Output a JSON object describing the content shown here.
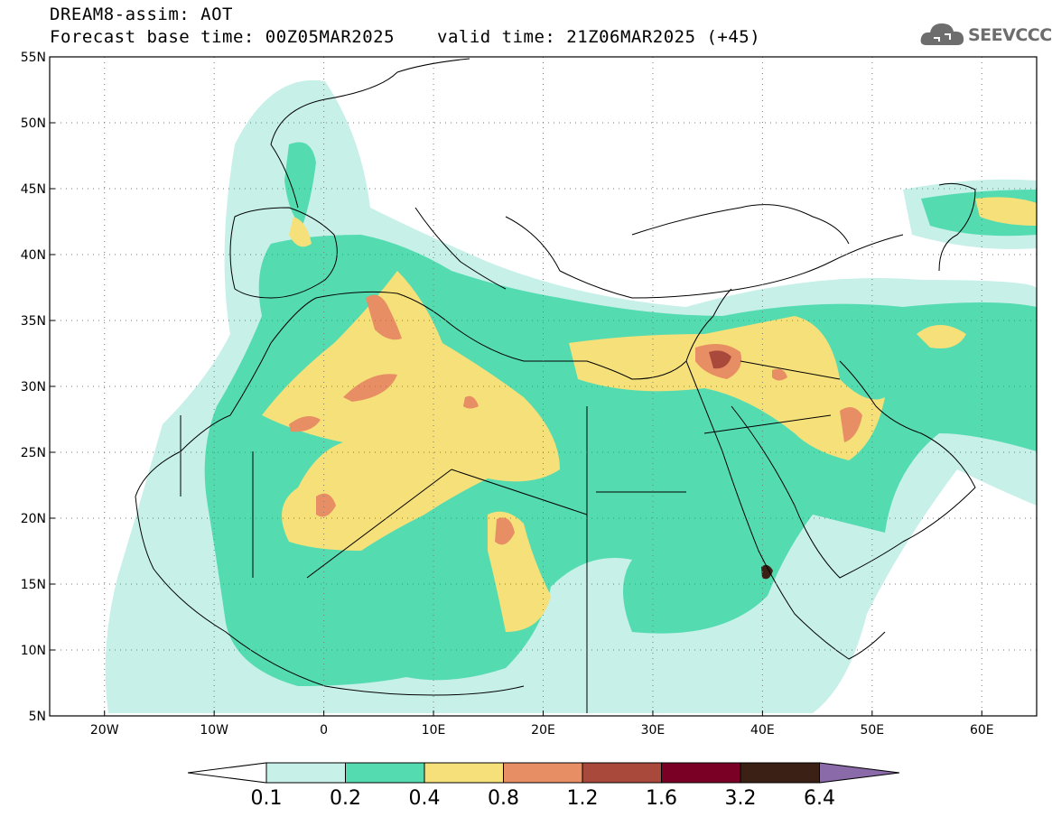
{
  "title": {
    "line1": "DREAM8-assim: AOT",
    "line2": "Forecast base time: 00Z05MAR2025",
    "valid": "valid time: 21Z06MAR2025 (+45)"
  },
  "logo": {
    "text": "SEEVCCC",
    "icon": "cloud-icon"
  },
  "map": {
    "lat_ticks": [
      "55N",
      "50N",
      "45N",
      "40N",
      "35N",
      "30N",
      "25N",
      "20N",
      "15N",
      "10N",
      "5N"
    ],
    "lon_ticks": [
      "20W",
      "10W",
      "0",
      "10E",
      "20E",
      "30E",
      "40E",
      "50E",
      "60E"
    ],
    "lat_range": [
      5,
      55
    ],
    "lon_range": [
      -25,
      65
    ],
    "grid": "dotted"
  },
  "colorbar": {
    "labels": [
      "0.1",
      "0.2",
      "0.4",
      "0.8",
      "1.2",
      "1.6",
      "3.2",
      "6.4"
    ],
    "colors": [
      "#ffffff",
      "#c6f0e8",
      "#55dbb0",
      "#f5e07a",
      "#e88e64",
      "#a8493b",
      "#7a0025",
      "#3a2015",
      "#8a6aa8"
    ]
  }
}
